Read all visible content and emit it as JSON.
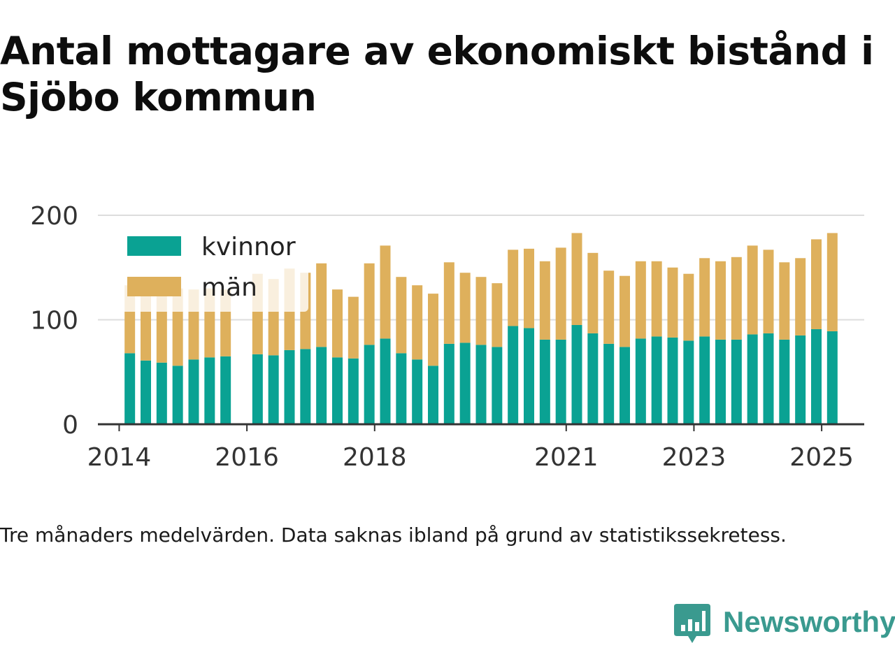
{
  "title": "Antal mottagare av ekonomiskt bistånd i Sjöbo kommun",
  "note": "Tre månaders medelvärden. Data saknas ibland på grund av statistikssekretess.",
  "brand": {
    "name": "Newsworthy",
    "icon": "newsworthy-logo-icon",
    "color": "#3a9a8f"
  },
  "colors": {
    "kvinnor": "#0aa293",
    "man": "#deb05c",
    "grid": "#dddddd",
    "axis": "#333333",
    "text": "#333333"
  },
  "chart_data": {
    "type": "bar",
    "stacked": true,
    "legend_position": "top-left",
    "grid": true,
    "ylim": [
      0,
      200
    ],
    "yticks": [
      0,
      100,
      200
    ],
    "xlim": [
      "2013-09",
      "2025-09"
    ],
    "xticks": [
      {
        "label": "2014",
        "x": "2014-01"
      },
      {
        "label": "2016",
        "x": "2016-01"
      },
      {
        "label": "2018",
        "x": "2018-01"
      },
      {
        "label": "2021",
        "x": "2021-01"
      },
      {
        "label": "2023",
        "x": "2023-01"
      },
      {
        "label": "2025",
        "x": "2025-01"
      }
    ],
    "x": [
      "2014-03",
      "2014-06",
      "2014-09",
      "2014-12",
      "2015-03",
      "2015-06",
      "2015-09",
      "2016-03",
      "2016-06",
      "2016-09",
      "2016-12",
      "2017-03",
      "2017-06",
      "2017-09",
      "2017-12",
      "2018-03",
      "2018-06",
      "2018-09",
      "2018-12",
      "2019-03",
      "2019-06",
      "2019-09",
      "2019-12",
      "2020-03",
      "2020-06",
      "2020-09",
      "2020-12",
      "2021-03",
      "2021-06",
      "2021-09",
      "2021-12",
      "2022-03",
      "2022-06",
      "2022-09",
      "2022-12",
      "2023-03",
      "2023-06",
      "2023-09",
      "2023-12",
      "2024-03",
      "2024-06",
      "2024-09",
      "2024-12",
      "2025-03",
      "2025-06"
    ],
    "series": [
      {
        "name": "kvinnor",
        "values": [
          68,
          61,
          59,
          56,
          62,
          64,
          65,
          67,
          66,
          71,
          72,
          74,
          64,
          63,
          76,
          82,
          68,
          62,
          56,
          77,
          78,
          76,
          74,
          94,
          92,
          81,
          81,
          95,
          87,
          77,
          74,
          82,
          84,
          83,
          80,
          84,
          81,
          81,
          86,
          87,
          81,
          85,
          91,
          89,
          0
        ]
      },
      {
        "name": "män",
        "values": [
          65,
          71,
          73,
          74,
          67,
          66,
          64,
          77,
          73,
          78,
          73,
          80,
          65,
          59,
          78,
          89,
          73,
          71,
          69,
          78,
          67,
          65,
          61,
          73,
          76,
          75,
          88,
          88,
          77,
          70,
          68,
          74,
          72,
          67,
          64,
          75,
          75,
          79,
          85,
          80,
          74,
          74,
          86,
          94,
          0
        ]
      }
    ]
  }
}
